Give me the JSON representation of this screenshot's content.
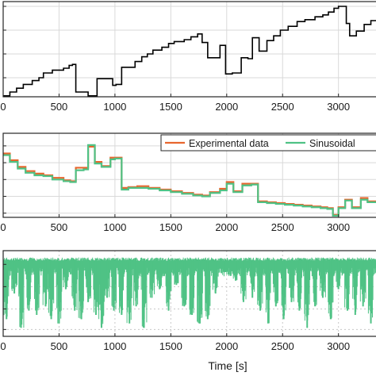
{
  "chart_data": [
    {
      "type": "line",
      "panel": "top",
      "xlim": [
        0,
        3350
      ],
      "ylim": [
        0,
        1
      ],
      "x_ticks": [
        0,
        500,
        1000,
        1500,
        2000,
        2500,
        3000
      ],
      "x_tick_labels": [
        "0",
        "500",
        "1000",
        "1500",
        "2000",
        "2500",
        "3000"
      ],
      "grid": true,
      "series": [
        {
          "color": "#000000",
          "step": true,
          "x": [
            0,
            60,
            120,
            180,
            260,
            320,
            360,
            440,
            540,
            590,
            620,
            650,
            760,
            820,
            840,
            920,
            980,
            1010,
            1060,
            1120,
            1180,
            1240,
            1290,
            1340,
            1420,
            1480,
            1530,
            1620,
            1680,
            1740,
            1780,
            1830,
            1880,
            1940,
            1990,
            2050,
            2130,
            2190,
            2230,
            2290,
            2360,
            2420,
            2480,
            2550,
            2630,
            2700,
            2790,
            2860,
            2910,
            2960,
            3000,
            3070,
            3100,
            3160,
            3230,
            3290,
            3350
          ],
          "y": [
            0.01,
            0.05,
            0.09,
            0.13,
            0.17,
            0.2,
            0.25,
            0.28,
            0.3,
            0.33,
            0.34,
            0.05,
            0.01,
            0.01,
            0.19,
            0.19,
            0.12,
            0.13,
            0.31,
            0.31,
            0.37,
            0.42,
            0.45,
            0.49,
            0.52,
            0.56,
            0.58,
            0.6,
            0.63,
            0.66,
            0.57,
            0.41,
            0.41,
            0.54,
            0.24,
            0.25,
            0.41,
            0.4,
            0.62,
            0.48,
            0.59,
            0.64,
            0.7,
            0.74,
            0.79,
            0.81,
            0.84,
            0.86,
            0.89,
            0.93,
            0.95,
            0.77,
            0.64,
            0.69,
            0.76,
            0.8,
            0.82
          ]
        }
      ]
    },
    {
      "type": "line",
      "panel": "middle",
      "xlim": [
        0,
        3350
      ],
      "ylim": [
        0,
        1
      ],
      "x_ticks": [
        0,
        500,
        1000,
        1500,
        2000,
        2500,
        3000
      ],
      "x_tick_labels": [
        "0",
        "500",
        "1000",
        "1500",
        "2000",
        "2500",
        "3000"
      ],
      "grid": true,
      "legend_position": "top-right",
      "series": [
        {
          "name": "Experimental data",
          "color": "#e8662e",
          "step": true,
          "x": [
            0,
            60,
            130,
            200,
            280,
            360,
            440,
            540,
            600,
            650,
            720,
            760,
            820,
            880,
            960,
            1000,
            1060,
            1120,
            1200,
            1300,
            1400,
            1500,
            1600,
            1700,
            1780,
            1850,
            1940,
            2000,
            2060,
            2140,
            2220,
            2280,
            2360,
            2440,
            2520,
            2600,
            2680,
            2760,
            2840,
            2900,
            2950,
            3000,
            3060,
            3120,
            3200,
            3260,
            3350
          ],
          "y": [
            0.76,
            0.68,
            0.6,
            0.55,
            0.52,
            0.5,
            0.47,
            0.44,
            0.43,
            0.59,
            0.59,
            0.84,
            0.66,
            0.61,
            0.71,
            0.71,
            0.35,
            0.36,
            0.37,
            0.35,
            0.33,
            0.31,
            0.29,
            0.27,
            0.26,
            0.3,
            0.34,
            0.42,
            0.31,
            0.4,
            0.4,
            0.19,
            0.18,
            0.17,
            0.16,
            0.15,
            0.14,
            0.13,
            0.12,
            0.11,
            0.03,
            0.12,
            0.21,
            0.12,
            0.23,
            0.19,
            0.18
          ]
        },
        {
          "name": "Sinusoidal",
          "color": "#4fc285",
          "step": true,
          "x": [
            0,
            60,
            130,
            200,
            280,
            360,
            440,
            540,
            600,
            650,
            720,
            760,
            820,
            880,
            960,
            1000,
            1060,
            1120,
            1200,
            1300,
            1400,
            1500,
            1600,
            1700,
            1780,
            1850,
            1940,
            2000,
            2060,
            2140,
            2220,
            2280,
            2360,
            2440,
            2520,
            2600,
            2680,
            2760,
            2840,
            2900,
            2950,
            3000,
            3060,
            3120,
            3200,
            3260,
            3350
          ],
          "y": [
            0.74,
            0.66,
            0.58,
            0.53,
            0.5,
            0.49,
            0.45,
            0.43,
            0.42,
            0.56,
            0.57,
            0.86,
            0.64,
            0.6,
            0.69,
            0.7,
            0.33,
            0.35,
            0.35,
            0.34,
            0.32,
            0.3,
            0.28,
            0.26,
            0.25,
            0.29,
            0.32,
            0.4,
            0.3,
            0.38,
            0.39,
            0.18,
            0.17,
            0.16,
            0.15,
            0.14,
            0.13,
            0.12,
            0.11,
            0.1,
            0.02,
            0.11,
            0.2,
            0.11,
            0.21,
            0.18,
            0.17
          ]
        }
      ]
    },
    {
      "type": "line",
      "panel": "bottom",
      "xlim": [
        0,
        3350
      ],
      "ylim": [
        0,
        1
      ],
      "x_ticks": [
        0,
        500,
        1000,
        1500,
        2000,
        2500,
        3000
      ],
      "x_tick_labels": [
        "0",
        "500",
        "1000",
        "1500",
        "2000",
        "2500",
        "3000"
      ],
      "xlabel": "Time [s]",
      "grid": true,
      "series": [
        {
          "color": "#4fc285",
          "baseline": 0.88,
          "dips": [
            {
              "x": 30,
              "min": 0.2
            },
            {
              "x": 100,
              "min": 0.5
            },
            {
              "x": 160,
              "min": 0.1
            },
            {
              "x": 230,
              "min": 0.3
            },
            {
              "x": 300,
              "min": 0.25
            },
            {
              "x": 380,
              "min": 0.35
            },
            {
              "x": 430,
              "min": 0.2
            },
            {
              "x": 500,
              "min": 0.15
            },
            {
              "x": 560,
              "min": 0.55
            },
            {
              "x": 640,
              "min": 0.3
            },
            {
              "x": 700,
              "min": 0.2
            },
            {
              "x": 760,
              "min": 0.4
            },
            {
              "x": 830,
              "min": 0.25
            },
            {
              "x": 880,
              "min": 0.1
            },
            {
              "x": 930,
              "min": 0.45
            },
            {
              "x": 990,
              "min": 0.3
            },
            {
              "x": 1060,
              "min": 0.25
            },
            {
              "x": 1130,
              "min": 0.15
            },
            {
              "x": 1190,
              "min": 0.35
            },
            {
              "x": 1260,
              "min": 0.1
            },
            {
              "x": 1330,
              "min": 0.45
            },
            {
              "x": 1400,
              "min": 0.55
            },
            {
              "x": 1480,
              "min": 0.3
            },
            {
              "x": 1550,
              "min": 0.6
            },
            {
              "x": 1620,
              "min": 0.35
            },
            {
              "x": 1690,
              "min": 0.25
            },
            {
              "x": 1760,
              "min": 0.15
            },
            {
              "x": 1830,
              "min": 0.2
            },
            {
              "x": 1900,
              "min": 0.5
            },
            {
              "x": 1990,
              "min": 0.75
            },
            {
              "x": 2080,
              "min": 0.65
            },
            {
              "x": 2150,
              "min": 0.4
            },
            {
              "x": 2230,
              "min": 0.45
            },
            {
              "x": 2300,
              "min": 0.3
            },
            {
              "x": 2370,
              "min": 0.15
            },
            {
              "x": 2440,
              "min": 0.35
            },
            {
              "x": 2510,
              "min": 0.2
            },
            {
              "x": 2580,
              "min": 0.4
            },
            {
              "x": 2650,
              "min": 0.3
            },
            {
              "x": 2720,
              "min": 0.1
            },
            {
              "x": 2790,
              "min": 0.35
            },
            {
              "x": 2860,
              "min": 0.45
            },
            {
              "x": 2930,
              "min": 0.2
            },
            {
              "x": 3000,
              "min": 0.55
            },
            {
              "x": 3080,
              "min": 0.3
            },
            {
              "x": 3150,
              "min": 0.25
            },
            {
              "x": 3220,
              "min": 0.35
            },
            {
              "x": 3290,
              "min": 0.15
            }
          ]
        }
      ]
    }
  ]
}
